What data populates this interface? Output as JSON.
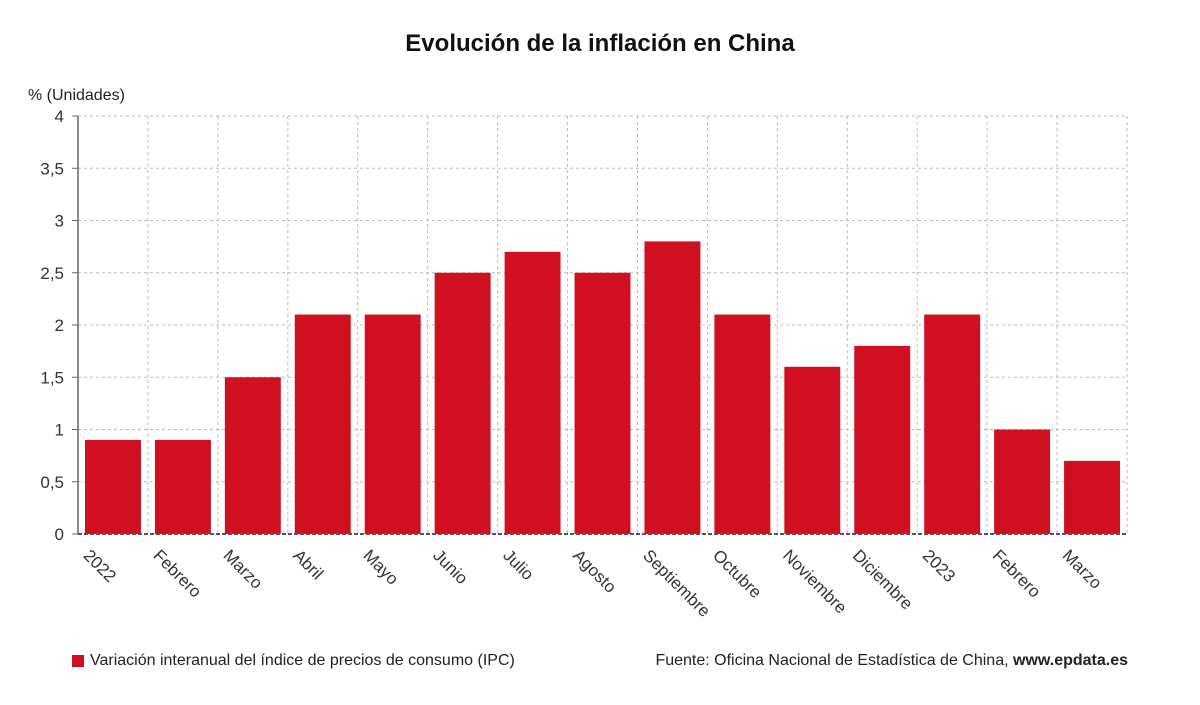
{
  "chart_data": {
    "type": "bar",
    "title": "Evolución de la inflación en China",
    "ylabel": "% (Unidades)",
    "xlabel": "",
    "ylim": [
      0,
      4
    ],
    "yticks": [
      0,
      0.5,
      1,
      1.5,
      2,
      2.5,
      3,
      3.5,
      4
    ],
    "ytick_labels": [
      "0",
      "0,5",
      "1",
      "1,5",
      "2",
      "2,5",
      "3",
      "3,5",
      "4"
    ],
    "grid": true,
    "categories": [
      "2022",
      "Febrero",
      "Marzo",
      "Abril",
      "Mayo",
      "Junio",
      "Julio",
      "Agosto",
      "Septiembre",
      "Octubre",
      "Noviembre",
      "Diciembre",
      "2023",
      "Febrero",
      "Marzo"
    ],
    "series": [
      {
        "name": "Variación interanual del índice de precios de consumo (IPC)",
        "color": "#d01020",
        "values": [
          0.9,
          0.9,
          1.5,
          2.1,
          2.1,
          2.5,
          2.7,
          2.5,
          2.8,
          2.1,
          1.6,
          1.8,
          2.1,
          1.0,
          0.7
        ]
      }
    ],
    "legend_position": "bottom-left"
  },
  "source": {
    "prefix": "Fuente: Oficina Nacional de Estadística de China,",
    "site": "www.epdata.es"
  }
}
